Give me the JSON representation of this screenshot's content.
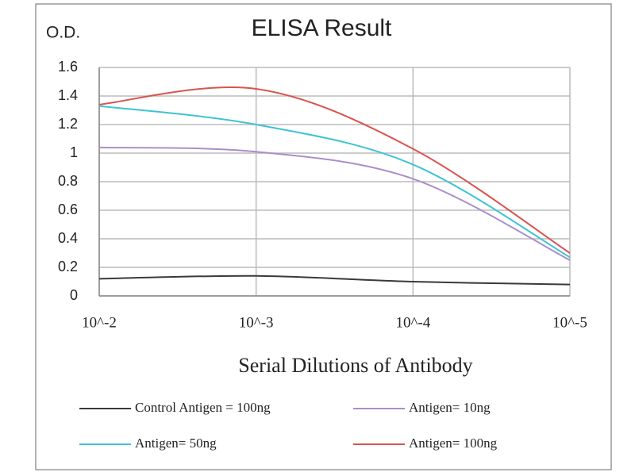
{
  "chart_data": {
    "type": "line",
    "title": "ELISA Result",
    "y_label": "O.D.",
    "x_label": "Serial Dilutions  of Antibody",
    "categories": [
      "10^-2",
      "10^-3",
      "10^-4",
      "10^-5"
    ],
    "series": [
      {
        "name": "Control Antigen = 100ng",
        "color": "#3a3a3a",
        "values": [
          0.12,
          0.14,
          0.1,
          0.08
        ]
      },
      {
        "name": "Antigen= 10ng",
        "color": "#a98fc9",
        "values": [
          1.04,
          1.01,
          0.82,
          0.25
        ]
      },
      {
        "name": "Antigen= 50ng",
        "color": "#3cc4d4",
        "values": [
          1.33,
          1.2,
          0.92,
          0.27
        ]
      },
      {
        "name": "Antigen= 100ng",
        "color": "#d9534f",
        "values": [
          1.34,
          1.45,
          1.03,
          0.3
        ]
      }
    ],
    "ylim": [
      0,
      1.6
    ],
    "yticks": [
      0,
      0.2,
      0.4,
      0.6,
      0.8,
      1,
      1.2,
      1.4,
      1.6
    ],
    "grid": true
  }
}
